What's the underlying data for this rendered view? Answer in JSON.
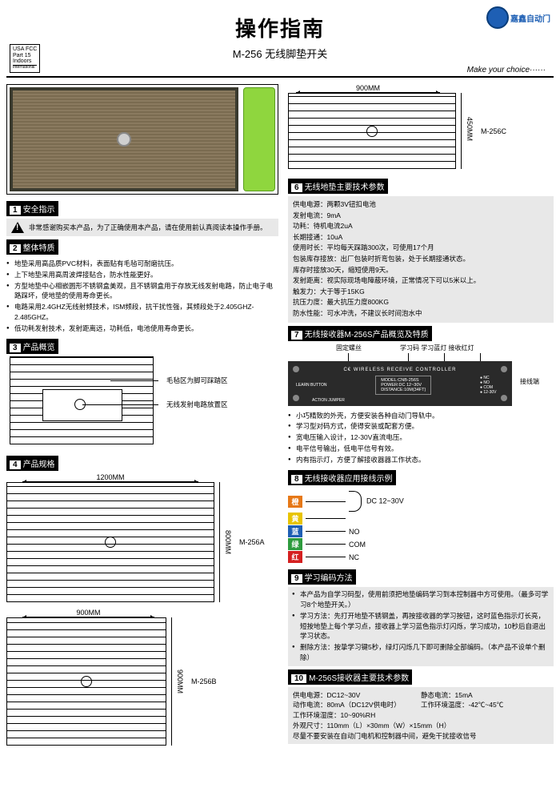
{
  "header": {
    "title": "操作指南",
    "subtitle": "M-256 无线脚垫开关",
    "tagline": "Make your choice······"
  },
  "logo": {
    "text": "嘉鑫自动门"
  },
  "badge": {
    "l1": "USA FCC",
    "l2": "Part 15",
    "l3": "Indoors",
    "l4": "International"
  },
  "sections": {
    "s1": {
      "num": "1",
      "title": "安全指示"
    },
    "s2": {
      "num": "2",
      "title": "整体特质"
    },
    "s3": {
      "num": "3",
      "title": "产品概览"
    },
    "s4": {
      "num": "4",
      "title": "产品规格"
    },
    "s6": {
      "num": "6",
      "title": "无线地垫主要技术参数"
    },
    "s7": {
      "num": "7",
      "title": "无线接收器M-256S产品概览及特质"
    },
    "s8": {
      "num": "8",
      "title": "无线接收器应用接线示例"
    },
    "s9": {
      "num": "9",
      "title": "学习编码方法"
    },
    "s10": {
      "num": "10",
      "title": "M-256S接收器主要技术参数"
    }
  },
  "warn": "非常感谢购买本产品，为了正确使用本产品，请在使用前认真阅读本操作手册。",
  "s2_items": [
    "地垫采用高品质PVC材料，表面贴有毛毡可耐磨抗压。",
    "上下地垫采用高周波焊接贴合，防水性能更好。",
    "方型地垫中心相嵌圆形不锈钢盒美观，且不锈钢盒用于存放无线发射电路，防止电子电路踩坏，使地垫的使用寿命更长。",
    "电路采用2.4GHZ无线射频技术，ISM频段，抗干扰性强，其频段处于2.405GHZ-2.485GHZ。",
    "低功耗发射技术，发射距离远，功耗低，电池使用寿命更长。"
  ],
  "overview": {
    "callout1": "毛毡区为脚可踩踏区",
    "callout2": "无线发射电路放置区"
  },
  "dims": {
    "a_w": "1200MM",
    "a_h": "800MM",
    "a_label": "M-256A",
    "b_w": "900MM",
    "b_h": "900MM",
    "b_label": "M-256B",
    "c_w": "900MM",
    "c_h": "450MM",
    "c_label": "M-256C"
  },
  "s6_items": [
    "供电电源：两颗3V钮扣电池",
    "发射电流：9mA",
    "功耗：待机电流2uA",
    "长期接通：10uA",
    "使用时长：平均每天踩踏300次，可使用17个月",
    "包装库存接放：出厂包装时折弯包装，处于长期接通状态。",
    "库存时接放30天，缩短使用9天。",
    "发射距离：视实际现场电障蔽环境，正常情况下可以5米以上。",
    "触发力：大于等于15KG",
    "抗压力度：最大抗压力度800KG",
    "防水性能：可水冲洗，不建议长时间泡水中"
  ],
  "receiver": {
    "screw": "固定螺丝",
    "learn": "学习码 学习蓝灯 接收红灯",
    "terminal": "接线端",
    "model": "MODEL:CNB-256S",
    "power": "POWER:DC 12~30V",
    "distance": "DISTANCE:10M(34FT)",
    "ce": "WIRELESS RECEIVE CONTROLLER",
    "btn1": "LEARN BUTTON",
    "btn2": "ACTION JUMPER"
  },
  "s7_items": [
    "小巧精致的外壳，方便安装各种自动门导轨中。",
    "学习型对码方式，使得安装或配套方便。",
    "宽电压输入设计，12-30V直流电压。",
    "电平信号输出，低电平信号有效。",
    "内有指示灯，方便了解接收器器工作状态。"
  ],
  "wiring": [
    {
      "label": "橙",
      "color": "#e67817",
      "out": "DC 12~30V"
    },
    {
      "label": "黄",
      "color": "#e8c400",
      "out": ""
    },
    {
      "label": "蓝",
      "color": "#1e5fb4",
      "out": "NO"
    },
    {
      "label": "绿",
      "color": "#2e9b3e",
      "out": "COM"
    },
    {
      "label": "红",
      "color": "#d42020",
      "out": "NC"
    }
  ],
  "s9_items": [
    "本产品为自学习码型，使用前须把地垫编码学习到本控制器中方可使用。（最多可学习8个地垫开关。）",
    "学习方法：先打开地垫不锈钢盖，再按接收器的学习按钮，这时蓝色指示灯长亮，短按地垫上每个学习点，接收器上学习蓝色指示灯闪烁，学习成功，10秒后自退出学习状态。",
    "删除方法：按挚学习键5秒，绿灯闪烁几下即可删除全部编码。（本产品不设单个删除）"
  ],
  "s10": [
    {
      "l": "供电电源：DC12~30V",
      "r": "静态电流：15mA"
    },
    {
      "l": "动作电流：80mA（DC12V供电时）",
      "r": "工作环境温度：-42℃~45℃"
    },
    {
      "l": "工作环境湿度：10~90%RH",
      "r": ""
    },
    {
      "l": "外观尺寸：110mm（L）×30mm（W）×15mm（H）",
      "r": ""
    },
    {
      "l": "尽量不要安装在自动门电机和控制器中间，避免干扰接收信号",
      "r": ""
    }
  ]
}
